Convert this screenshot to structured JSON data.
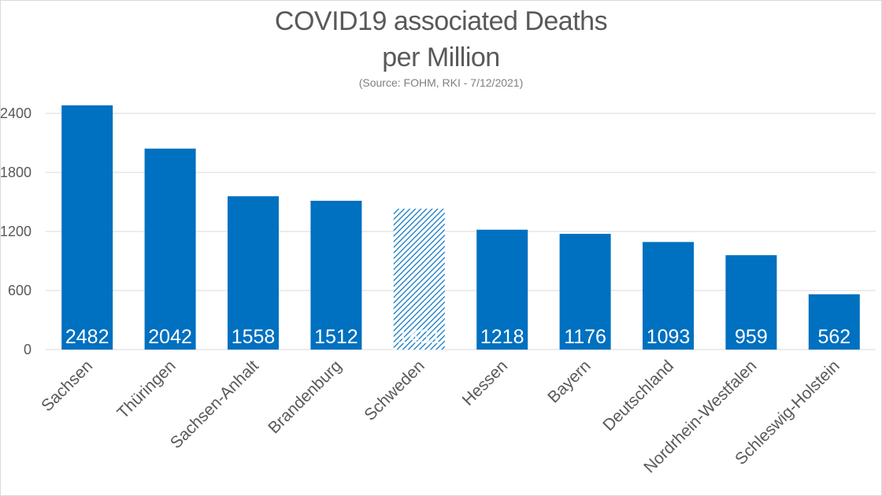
{
  "chart_data": {
    "type": "bar",
    "title": "COVID19 associated Deaths",
    "title_line2": "per Million",
    "subtitle": "(Source: FOHM, RKI - 7/12/2021)",
    "categories": [
      "Sachsen",
      "Thüringen",
      "Sachsen-Anhalt",
      "Brandenburg",
      "Schweden",
      "Hessen",
      "Bayern",
      "Deutschland",
      "Nordrhein-Westfalen",
      "Schleswig-Holstein"
    ],
    "values": [
      2482,
      2042,
      1558,
      1512,
      1431,
      1218,
      1176,
      1093,
      959,
      562
    ],
    "highlight_category": "Schweden",
    "yticks": [
      0,
      600,
      1200,
      1800,
      2400
    ],
    "ylim": [
      0,
      2600
    ],
    "grid": true,
    "xlabel": "",
    "ylabel": "",
    "colors": {
      "bar": "#0070C0",
      "hatch": "#0070C0",
      "grid": "#d9d9d9",
      "text": "#595959",
      "label": "#ffffff"
    }
  }
}
